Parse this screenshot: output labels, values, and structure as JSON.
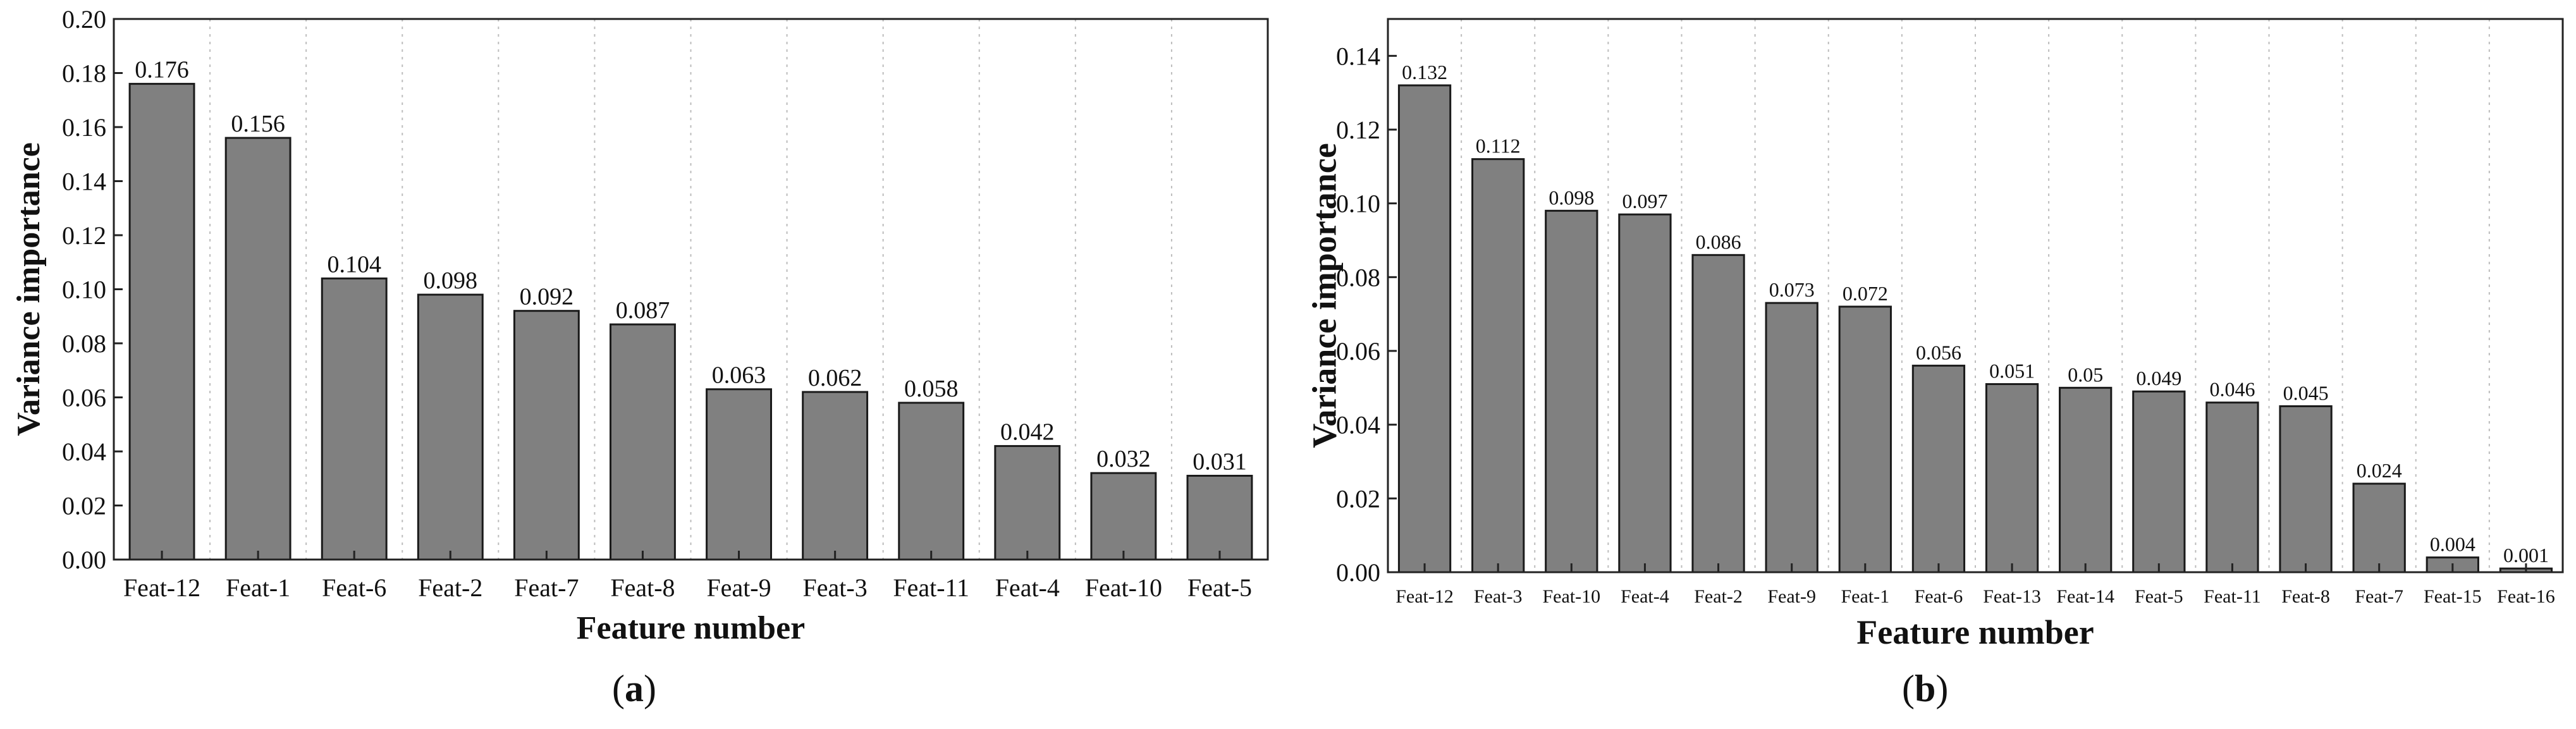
{
  "chart_data": [
    {
      "type": "bar",
      "panel": "(a)",
      "xlabel": "Feature number",
      "ylabel": "Variance importance",
      "ylim": [
        0,
        0.2
      ],
      "yticks": [
        "0.00",
        "0.02",
        "0.04",
        "0.06",
        "0.08",
        "0.10",
        "0.12",
        "0.14",
        "0.16",
        "0.18",
        "0.20"
      ],
      "categories": [
        "Feat-12",
        "Feat-1",
        "Feat-6",
        "Feat-2",
        "Feat-7",
        "Feat-8",
        "Feat-9",
        "Feat-3",
        "Feat-11",
        "Feat-4",
        "Feat-10",
        "Feat-5"
      ],
      "values": [
        0.176,
        0.156,
        0.104,
        0.098,
        0.092,
        0.087,
        0.063,
        0.062,
        0.058,
        0.042,
        0.032,
        0.031
      ],
      "value_labels": [
        "0.176",
        "0.156",
        "0.104",
        "0.098",
        "0.092",
        "0.087",
        "0.063",
        "0.062",
        "0.058",
        "0.042",
        "0.032",
        "0.031"
      ],
      "bar_color": "#808080",
      "grid": "vertical dotted"
    },
    {
      "type": "bar",
      "panel": "(b)",
      "xlabel": "Feature number",
      "ylabel": "Variance importance",
      "ylim": [
        0,
        0.15
      ],
      "yticks": [
        "0.00",
        "0.02",
        "0.04",
        "0.06",
        "0.08",
        "0.10",
        "0.12",
        "0.14"
      ],
      "categories": [
        "Feat-12",
        "Feat-3",
        "Feat-10",
        "Feat-4",
        "Feat-2",
        "Feat-9",
        "Feat-1",
        "Feat-6",
        "Feat-13",
        "Feat-14",
        "Feat-5",
        "Feat-11",
        "Feat-8",
        "Feat-7",
        "Feat-15",
        "Feat-16"
      ],
      "values": [
        0.132,
        0.112,
        0.098,
        0.097,
        0.086,
        0.073,
        0.072,
        0.056,
        0.051,
        0.05,
        0.049,
        0.046,
        0.045,
        0.024,
        0.004,
        0.001
      ],
      "value_labels": [
        "0.132",
        "0.112",
        "0.098",
        "0.097",
        "0.086",
        "0.073",
        "0.072",
        "0.056",
        "0.051",
        "0.05",
        "0.049",
        "0.046",
        "0.045",
        "0.024",
        "0.004",
        "0.001"
      ],
      "bar_color": "#808080",
      "grid": "vertical dotted"
    }
  ],
  "panel_labels": {
    "a": "a",
    "b": "b"
  }
}
